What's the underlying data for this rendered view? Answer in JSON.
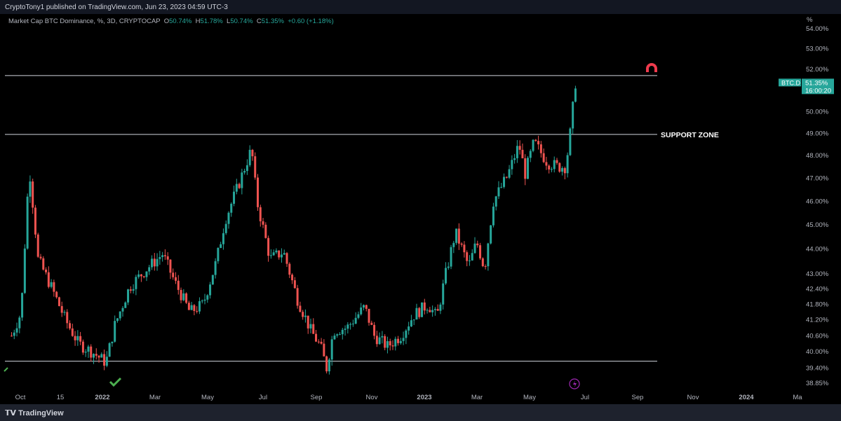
{
  "header": {
    "publisher_line": "CryptoTony1 published on TradingView.com, Jun 23, 2023 04:59 UTC-3"
  },
  "legend": {
    "symbol": "Market Cap BTC Dominance, %, 3D, CRYPTOCAP",
    "open_label": "O",
    "open": "50.74%",
    "high_label": "H",
    "high": "51.78%",
    "low_label": "L",
    "low": "50.74%",
    "close_label": "C",
    "close": "51.35%",
    "change": "+0.60 (+1.18%)"
  },
  "price_axis": {
    "unit": "%",
    "ticks": [
      "54.00%",
      "53.00%",
      "52.00%",
      "50.00%",
      "49.00%",
      "48.00%",
      "47.00%",
      "46.00%",
      "45.00%",
      "44.00%",
      "43.00%",
      "42.40%",
      "41.80%",
      "41.20%",
      "40.60%",
      "40.00%",
      "39.40%",
      "38.85%"
    ]
  },
  "price_badge": {
    "symbol": "BTC.D",
    "value": "51.35%",
    "countdown": "16:00:20"
  },
  "time_axis": {
    "labels": [
      "Oct",
      "15",
      "2022",
      "Mar",
      "May",
      "Jul",
      "Sep",
      "Nov",
      "2023",
      "Mar",
      "May",
      "Jul",
      "Sep",
      "Nov",
      "2024",
      "Ma"
    ]
  },
  "annotations": {
    "support_zone_label": "SUPPORT ZONE"
  },
  "footer": {
    "brand": "TradingView"
  },
  "colors": {
    "up": "#26a69a",
    "down": "#ef5350",
    "background": "#000000",
    "line": "#d1d4dc"
  },
  "chart_data": {
    "type": "candlestick",
    "title": "Market Cap BTC Dominance, %, 3D, CRYPTOCAP",
    "ylabel": "%",
    "yscale": "log",
    "ylim": [
      38.85,
      54.0
    ],
    "horizontal_levels": [
      {
        "value": 51.7,
        "label": ""
      },
      {
        "value": 48.95,
        "label": "SUPPORT ZONE"
      },
      {
        "value": 39.65,
        "label": ""
      }
    ],
    "anchors": [
      [
        "2021-09-20",
        40.6
      ],
      [
        "2021-10-01",
        41.5
      ],
      [
        "2021-10-10",
        47.5
      ],
      [
        "2021-10-20",
        43.6
      ],
      [
        "2021-11-05",
        42.4
      ],
      [
        "2021-11-20",
        41.2
      ],
      [
        "2021-12-05",
        40.3
      ],
      [
        "2021-12-20",
        40.0
      ],
      [
        "2022-01-05",
        39.6
      ],
      [
        "2022-01-15",
        41.0
      ],
      [
        "2022-02-01",
        42.5
      ],
      [
        "2022-02-20",
        43.2
      ],
      [
        "2022-03-10",
        43.8
      ],
      [
        "2022-03-25",
        42.6
      ],
      [
        "2022-04-10",
        41.5
      ],
      [
        "2022-04-25",
        41.8
      ],
      [
        "2022-05-10",
        43.5
      ],
      [
        "2022-05-20",
        45.2
      ],
      [
        "2022-06-05",
        46.8
      ],
      [
        "2022-06-19",
        48.3
      ],
      [
        "2022-06-25",
        46.0
      ],
      [
        "2022-07-10",
        43.6
      ],
      [
        "2022-07-25",
        43.9
      ],
      [
        "2022-08-10",
        42.0
      ],
      [
        "2022-08-25",
        40.8
      ],
      [
        "2022-09-05",
        40.2
      ],
      [
        "2022-09-12",
        39.4
      ],
      [
        "2022-09-20",
        40.8
      ],
      [
        "2022-10-05",
        40.9
      ],
      [
        "2022-10-25",
        41.7
      ],
      [
        "2022-11-05",
        40.6
      ],
      [
        "2022-11-20",
        40.2
      ],
      [
        "2022-12-05",
        40.6
      ],
      [
        "2022-12-20",
        41.4
      ],
      [
        "2023-01-05",
        41.8
      ],
      [
        "2023-01-15",
        41.3
      ],
      [
        "2023-01-25",
        43.0
      ],
      [
        "2023-02-05",
        44.7
      ],
      [
        "2023-02-20",
        43.3
      ],
      [
        "2023-03-01",
        44.3
      ],
      [
        "2023-03-10",
        43.2
      ],
      [
        "2023-03-20",
        46.0
      ],
      [
        "2023-04-05",
        47.1
      ],
      [
        "2023-04-18",
        48.5
      ],
      [
        "2023-04-25",
        47.2
      ],
      [
        "2023-05-05",
        48.6
      ],
      [
        "2023-05-20",
        47.7
      ],
      [
        "2023-06-01",
        47.5
      ],
      [
        "2023-06-10",
        47.5
      ],
      [
        "2023-06-15",
        49.0
      ],
      [
        "2023-06-21",
        51.35
      ]
    ]
  }
}
